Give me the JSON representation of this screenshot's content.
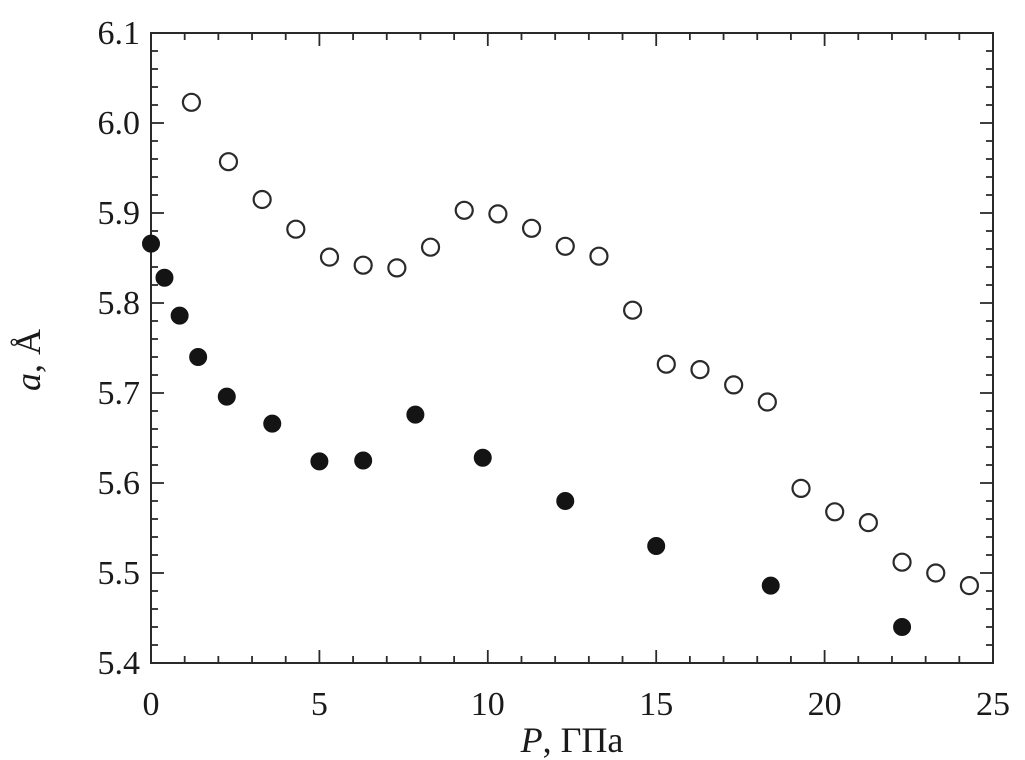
{
  "chart_data": {
    "type": "scatter",
    "title": "",
    "xlabel": {
      "var": "P",
      "unit": ", ГПа"
    },
    "ylabel": {
      "var": "a",
      "unit": ", Å"
    },
    "xlim": [
      0,
      25
    ],
    "ylim": [
      5.4,
      6.1
    ],
    "xticks": [
      0,
      5,
      10,
      15,
      20,
      25
    ],
    "xtick_labels": [
      "0",
      "5",
      "10",
      "15",
      "20",
      "25"
    ],
    "yticks": [
      5.4,
      5.5,
      5.6,
      5.7,
      5.8,
      5.9,
      6.0,
      6.1
    ],
    "ytick_labels": [
      "5.4",
      "5.5",
      "5.6",
      "5.7",
      "5.8",
      "5.9",
      "6.0",
      "6.1"
    ],
    "minor_tick_step_x": 1,
    "minor_tick_step_y": 0.02,
    "grid": false,
    "series": [
      {
        "marker": "open-circle",
        "color": "#2a2a2a",
        "points": [
          [
            1.2,
            6.023
          ],
          [
            2.3,
            5.957
          ],
          [
            3.3,
            5.915
          ],
          [
            4.3,
            5.882
          ],
          [
            5.3,
            5.851
          ],
          [
            6.3,
            5.842
          ],
          [
            7.3,
            5.839
          ],
          [
            8.3,
            5.862
          ],
          [
            9.3,
            5.903
          ],
          [
            10.3,
            5.899
          ],
          [
            11.3,
            5.883
          ],
          [
            12.3,
            5.863
          ],
          [
            13.3,
            5.852
          ],
          [
            14.3,
            5.792
          ],
          [
            15.3,
            5.732
          ],
          [
            16.3,
            5.726
          ],
          [
            17.3,
            5.709
          ],
          [
            18.3,
            5.69
          ],
          [
            19.3,
            5.594
          ],
          [
            20.3,
            5.568
          ],
          [
            21.3,
            5.556
          ],
          [
            22.3,
            5.512
          ],
          [
            23.3,
            5.5
          ],
          [
            24.3,
            5.486
          ]
        ]
      },
      {
        "marker": "filled-circle",
        "color": "#141414",
        "points": [
          [
            0.0,
            5.866
          ],
          [
            0.4,
            5.828
          ],
          [
            0.85,
            5.786
          ],
          [
            1.4,
            5.74
          ],
          [
            2.25,
            5.696
          ],
          [
            3.6,
            5.666
          ],
          [
            5.0,
            5.624
          ],
          [
            6.3,
            5.625
          ],
          [
            7.85,
            5.676
          ],
          [
            9.85,
            5.628
          ],
          [
            12.3,
            5.58
          ],
          [
            15.0,
            5.53
          ],
          [
            18.4,
            5.486
          ],
          [
            22.3,
            5.44
          ]
        ]
      }
    ]
  }
}
